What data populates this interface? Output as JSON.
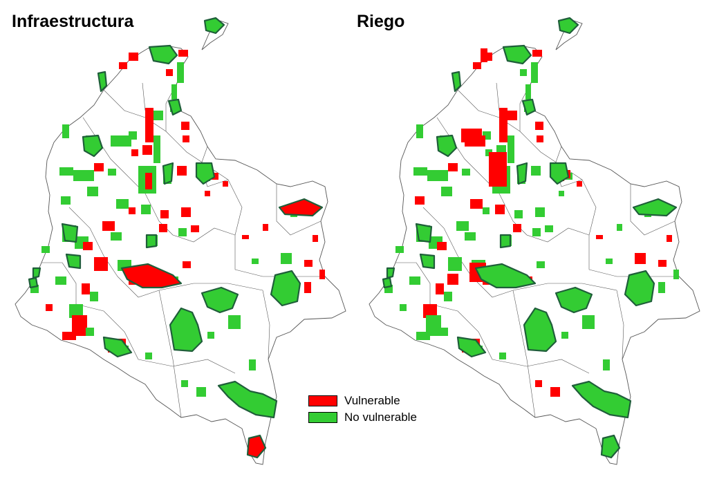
{
  "maps": [
    {
      "title": "Infraestructura",
      "scenario": "infraestructura"
    },
    {
      "title": "Riego",
      "scenario": "riego"
    }
  ],
  "legend": {
    "items": [
      {
        "label": "Vulnerable",
        "color": "#ff0000"
      },
      {
        "label": "No vulnerable",
        "color": "#33cc33"
      }
    ]
  },
  "colors": {
    "vulnerable": "#ff0000",
    "no_vulnerable": "#33cc33",
    "protected_outline": "#1f5e3a",
    "boundary": "#555555"
  }
}
